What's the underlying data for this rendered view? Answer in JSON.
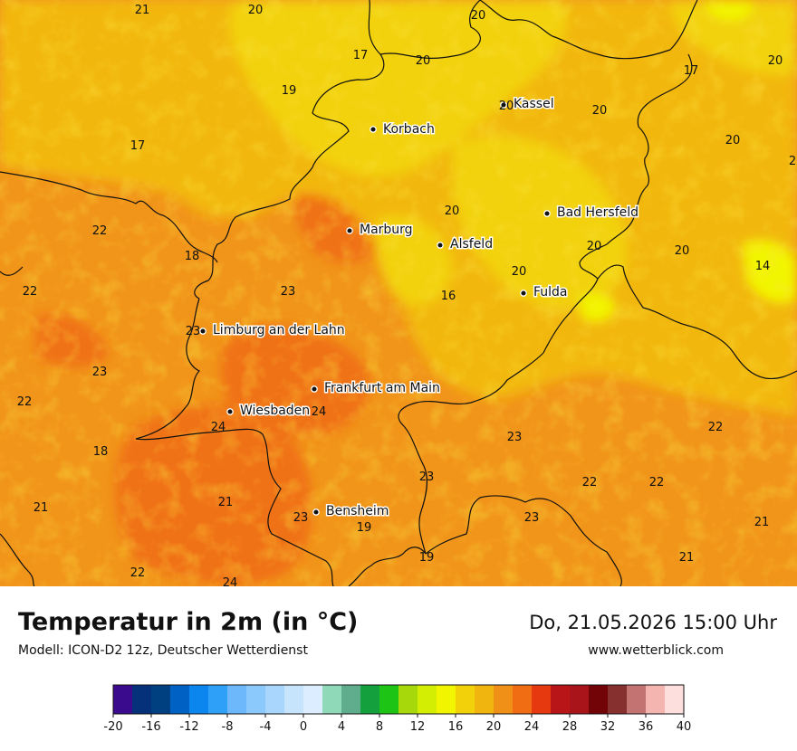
{
  "title": "Temperatur in 2m (in °C)",
  "subtitle": "Modell: ICON-D2 12z, Deutscher Wetterdienst",
  "datetime": "Do, 21.05.2026 15:00 Uhr",
  "website": "www.wetterblick.com",
  "cities": [
    {
      "name": "Kassel"
    },
    {
      "name": "Korbach"
    },
    {
      "name": "Bad Hersfeld"
    },
    {
      "name": "Marburg"
    },
    {
      "name": "Alsfeld"
    },
    {
      "name": "Fulda"
    },
    {
      "name": "Limburg an der Lahn"
    },
    {
      "name": "Frankfurt am Main"
    },
    {
      "name": "Wiesbaden"
    },
    {
      "name": "Bensheim"
    }
  ],
  "temperature_labels": [
    "21",
    "20",
    "20",
    "17",
    "20",
    "17",
    "20",
    "19",
    "20",
    "20",
    "17",
    "20",
    "2",
    "22",
    "20",
    "22",
    "18",
    "20",
    "20",
    "14",
    "20",
    "23",
    "16",
    "22",
    "23",
    "23",
    "22",
    "24",
    "24",
    "23",
    "22",
    "18",
    "23",
    "22",
    "21",
    "21",
    "23",
    "23",
    "19",
    "21",
    "21",
    "22",
    "24",
    "19"
  ],
  "legend": {
    "ticks": [
      "-20",
      "-16",
      "-12",
      "-8",
      "-4",
      "0",
      "4",
      "8",
      "12",
      "16",
      "20",
      "24",
      "28",
      "32",
      "36",
      "40"
    ],
    "colors": [
      "#3a0b8c",
      "#05307a",
      "#004081",
      "#0061c4",
      "#0a86ee",
      "#2ea0f8",
      "#6db8fb",
      "#8bc8fc",
      "#a8d6fc",
      "#c7e4fd",
      "#dbedfe",
      "#8fd9b8",
      "#60ad8d",
      "#13a03d",
      "#1ec415",
      "#a7d80c",
      "#d4ee03",
      "#f2f500",
      "#f2d10a",
      "#f1b510",
      "#f19016",
      "#f06d13",
      "#e6390f",
      "#b81518",
      "#a9141a",
      "#720306",
      "#86302f",
      "#c47373",
      "#f4b5b1",
      "#fde0de"
    ]
  }
}
